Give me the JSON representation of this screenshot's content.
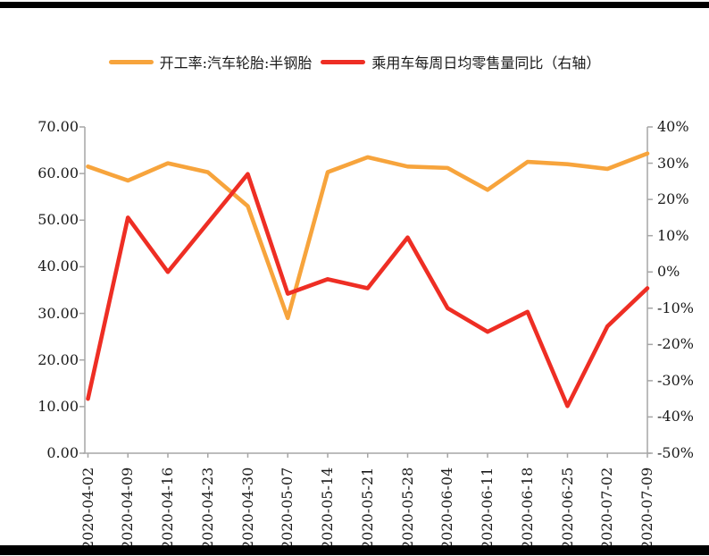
{
  "legend": [
    {
      "label": "开工率:汽车轮胎:半钢胎",
      "color": "#F7A43C"
    },
    {
      "label": "乘用车每周日均零售量同比（右轴）",
      "color": "#EE2E24"
    }
  ],
  "chart_data": {
    "type": "line",
    "title": "",
    "xlabel": "",
    "ylabel_left": "",
    "ylabel_right": "",
    "grid": false,
    "legend_position": "top",
    "categories": [
      "2020-04-02",
      "2020-04-09",
      "2020-04-16",
      "2020-04-23",
      "2020-04-30",
      "2020-05-07",
      "2020-05-14",
      "2020-05-21",
      "2020-05-28",
      "2020-06-04",
      "2020-06-11",
      "2020-06-18",
      "2020-06-25",
      "2020-07-02",
      "2020-07-09"
    ],
    "series": [
      {
        "name": "开工率:汽车轮胎:半钢胎",
        "axis": "left",
        "color": "#F7A43C",
        "values": [
          61.5,
          58.5,
          62.2,
          60.3,
          53.0,
          29.0,
          60.3,
          63.5,
          61.5,
          61.2,
          56.5,
          62.5,
          62.0,
          61.0,
          64.3
        ]
      },
      {
        "name": "乘用车每周日均零售量同比（右轴）",
        "axis": "right",
        "color": "#EE2E24",
        "values": [
          -35,
          15,
          0,
          13.5,
          27,
          -6,
          -2,
          -4.5,
          9.5,
          -10,
          -16.5,
          -11,
          -37,
          -15,
          -4.5
        ]
      }
    ],
    "left_axis": {
      "min": 0,
      "max": 70,
      "step": 10,
      "tick_labels": [
        "70.00",
        "60.00",
        "50.00",
        "40.00",
        "30.00",
        "20.00",
        "10.00",
        "0.00"
      ]
    },
    "right_axis": {
      "min": -50,
      "max": 40,
      "step": 10,
      "tick_labels": [
        "40%",
        "30%",
        "20%",
        "10%",
        "0%",
        "-10%",
        "-20%",
        "-30%",
        "-40%",
        "-50%"
      ]
    },
    "axis_color": "#A6A6A6",
    "text_color": "#1A1A1A"
  }
}
